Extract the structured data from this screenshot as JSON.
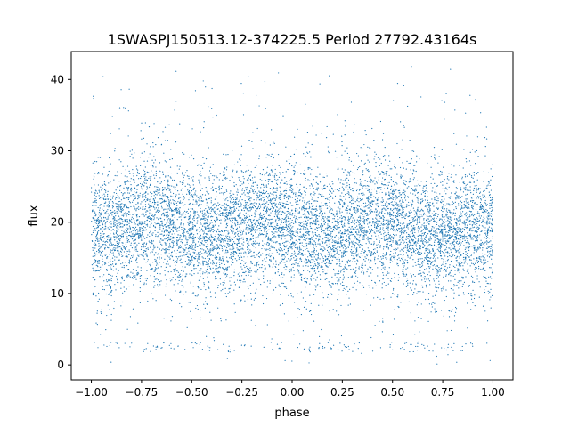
{
  "chart_data": {
    "type": "scatter",
    "title": "1SWASPJ150513.12-374225.5 Period 27792.43164s",
    "xlabel": "phase",
    "ylabel": "flux",
    "xlim": [
      -1.1,
      1.1
    ],
    "ylim": [
      -2.1,
      43.9
    ],
    "x_ticks": [
      -1.0,
      -0.75,
      -0.5,
      -0.25,
      0.0,
      0.25,
      0.5,
      0.75,
      1.0
    ],
    "x_tick_labels": [
      "−1.00",
      "−0.75",
      "−0.50",
      "−0.25",
      "0.00",
      "0.25",
      "0.50",
      "0.75",
      "1.00"
    ],
    "y_ticks": [
      0,
      10,
      20,
      30,
      40
    ],
    "y_tick_labels": [
      "0",
      "10",
      "20",
      "30",
      "40"
    ],
    "grid": false,
    "legend": "none",
    "series": [
      {
        "color": "#1f77b4",
        "marker_size": 0.6,
        "phase_range": [
          -1.0,
          1.0
        ],
        "x_step": 0.05,
        "x": [
          -1.0,
          -0.95,
          -0.9,
          -0.85,
          -0.8,
          -0.75,
          -0.7,
          -0.65,
          -0.6,
          -0.55,
          -0.5,
          -0.45,
          -0.4,
          -0.35,
          -0.3,
          -0.25,
          -0.2,
          -0.15,
          -0.1,
          -0.05,
          0.0,
          0.05,
          0.1,
          0.15,
          0.2,
          0.25,
          0.3,
          0.35,
          0.4,
          0.45,
          0.5,
          0.55,
          0.6,
          0.65,
          0.7,
          0.75,
          0.8,
          0.85,
          0.9,
          0.95,
          1.0
        ],
        "median_flux": [
          18.0,
          18.3,
          18.8,
          19.3,
          19.8,
          20.2,
          20.4,
          20.3,
          19.9,
          19.3,
          18.7,
          18.2,
          18.0,
          18.2,
          18.8,
          19.5,
          20.1,
          20.4,
          20.3,
          19.9,
          19.2,
          18.6,
          18.2,
          18.0,
          18.2,
          18.8,
          19.5,
          20.1,
          20.4,
          20.3,
          19.8,
          19.2,
          18.6,
          18.2,
          18.0,
          18.2,
          18.6,
          19.0,
          19.3,
          19.1,
          18.8
        ],
        "flux_p05": [
          11.5,
          11.8,
          12.3,
          12.8,
          13.3,
          13.7,
          13.9,
          13.8,
          13.4,
          12.8,
          12.2,
          11.7,
          11.5,
          11.7,
          12.3,
          13.0,
          13.6,
          13.9,
          13.8,
          13.4,
          12.7,
          12.1,
          11.7,
          11.5,
          11.7,
          12.3,
          13.0,
          13.6,
          13.9,
          13.8,
          13.3,
          12.7,
          12.1,
          11.7,
          11.5,
          11.7,
          12.1,
          12.5,
          12.8,
          12.6,
          12.3
        ],
        "flux_p95": [
          26.0,
          26.3,
          26.8,
          27.3,
          27.8,
          28.2,
          28.4,
          28.3,
          27.9,
          27.3,
          26.7,
          26.2,
          26.0,
          26.2,
          26.8,
          27.5,
          28.1,
          28.4,
          28.3,
          27.9,
          27.2,
          26.6,
          26.2,
          26.0,
          26.2,
          26.8,
          27.5,
          28.1,
          28.4,
          28.3,
          27.8,
          27.2,
          26.6,
          26.2,
          26.0,
          26.2,
          26.6,
          27.0,
          27.3,
          27.1,
          26.8
        ],
        "flux_max": 42,
        "flux_min": 0,
        "low_flux_band": 2.5
      }
    ]
  }
}
